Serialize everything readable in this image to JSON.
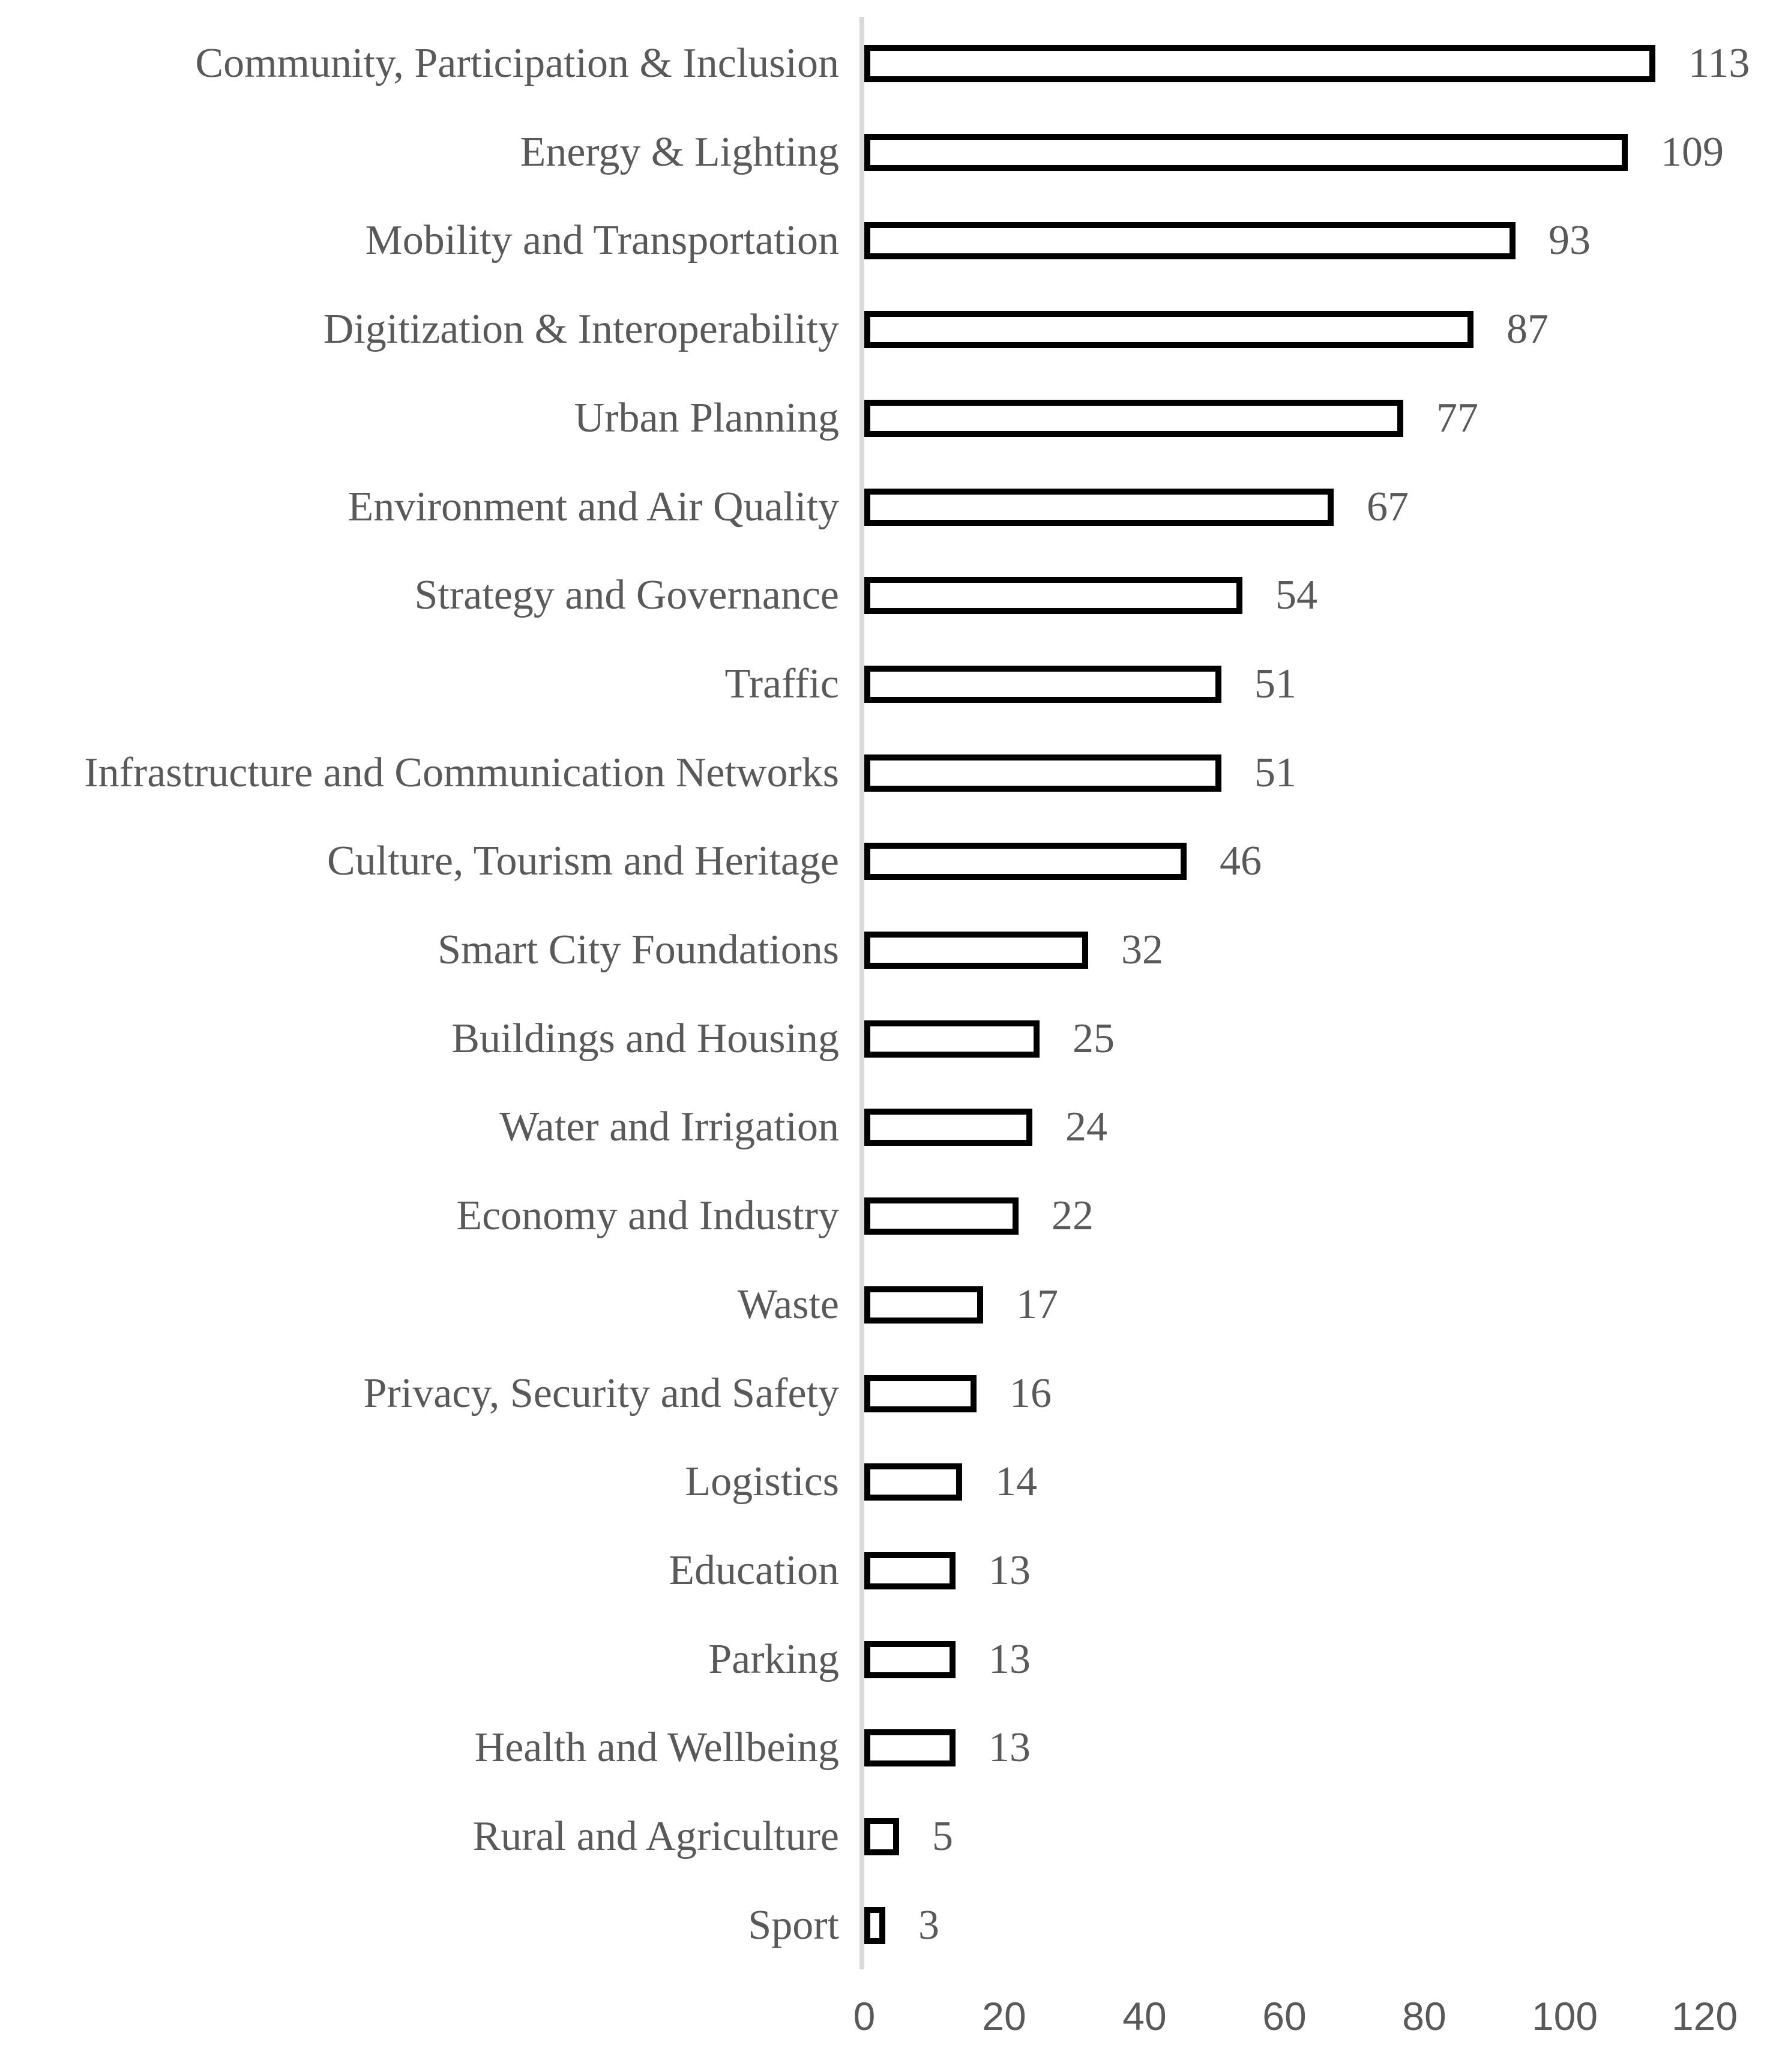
{
  "chart_data": {
    "type": "bar",
    "orientation": "horizontal",
    "title": "",
    "xlabel": "",
    "ylabel": "",
    "categories": [
      "Community, Participation & Inclusion",
      "Energy & Lighting",
      "Mobility and Transportation",
      "Digitization & Interoperability",
      "Urban Planning",
      "Environment and Air Quality",
      "Strategy and Governance",
      "Traffic",
      "Infrastructure and Communication Networks",
      "Culture, Tourism and Heritage",
      "Smart City Foundations",
      "Buildings and Housing",
      "Water and Irrigation",
      "Economy and Industry",
      "Waste",
      "Privacy, Security and Safety",
      "Logistics",
      "Education",
      "Parking",
      "Health and Wellbeing",
      "Rural and Agriculture",
      "Sport"
    ],
    "values": [
      113,
      109,
      93,
      87,
      77,
      67,
      54,
      51,
      51,
      46,
      32,
      25,
      24,
      22,
      17,
      16,
      14,
      13,
      13,
      13,
      5,
      3
    ],
    "data_labels_shown": true,
    "xlim": [
      0,
      120
    ],
    "x_ticks": [
      0,
      20,
      40,
      60,
      80,
      100,
      120
    ],
    "grid": false,
    "legend": "none",
    "colors": {
      "bar_fill": "#ffffff",
      "bar_border": "#000000",
      "text_gray": "#595959",
      "axis_line": "#d9d9d9"
    }
  }
}
